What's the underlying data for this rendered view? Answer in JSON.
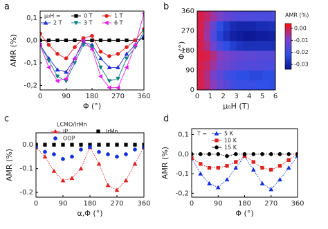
{
  "chart_data": [
    {
      "type": "line",
      "label": "a",
      "xlabel": "Φ (°)",
      "ylabel": "AMR (%)",
      "legend_title": "μ₀H =",
      "legend_columns": 3,
      "x": [
        0,
        30,
        60,
        90,
        120,
        150,
        180,
        210,
        240,
        270,
        300,
        330,
        360
      ],
      "xlim": [
        0,
        360
      ],
      "xticks": [
        0,
        90,
        180,
        270,
        360
      ],
      "ylim": [
        -0.22,
        0.13
      ],
      "yticks": [
        {
          "value": 0.1,
          "label": "0,1"
        },
        {
          "value": 0,
          "label": "0,0"
        },
        {
          "value": -0.1,
          "label": "-0,1"
        },
        {
          "value": -0.2,
          "label": "-0,2"
        }
      ],
      "series": [
        {
          "name": "0 T",
          "color": "#000000",
          "marker": "square",
          "linestyle": "solid",
          "values": [
            0,
            0,
            0,
            0,
            0,
            0,
            0,
            0,
            0,
            0,
            0,
            0,
            0.01
          ]
        },
        {
          "name": "1 T",
          "color": "#e02020",
          "marker": "circle",
          "linestyle": "solid",
          "values": [
            0.03,
            -0.02,
            -0.06,
            -0.08,
            -0.03,
            0.01,
            0.02,
            -0.05,
            -0.07,
            -0.06,
            -0.03,
            0.0,
            0.05
          ]
        },
        {
          "name": "2 T",
          "color": "#2030d0",
          "marker": "triangle",
          "linestyle": "solid",
          "values": [
            -0.02,
            -0.08,
            -0.13,
            -0.14,
            -0.08,
            -0.01,
            -0.02,
            -0.08,
            -0.12,
            -0.12,
            -0.06,
            -0.02,
            0.02
          ]
        },
        {
          "name": "3 T",
          "color": "#108080",
          "marker": "triangle-down",
          "linestyle": "solid",
          "values": [
            -0.02,
            -0.09,
            -0.16,
            -0.18,
            -0.1,
            -0.02,
            -0.03,
            -0.12,
            -0.18,
            -0.17,
            -0.08,
            -0.03,
            0.04
          ]
        },
        {
          "name": "6 T",
          "color": "#e020e0",
          "marker": "triangle-left",
          "linestyle": "solid",
          "values": [
            -0.02,
            -0.12,
            -0.18,
            -0.17,
            -0.08,
            0.0,
            -0.04,
            -0.16,
            -0.21,
            -0.21,
            -0.12,
            -0.02,
            0.12
          ]
        }
      ]
    },
    {
      "type": "heatmap",
      "label": "b",
      "xlabel": "μ₀H (T)",
      "ylabel": "Φ (°)",
      "colorbar_title": "AMR (%)",
      "xbins": [
        0,
        0.5,
        1,
        1.5,
        2,
        2.5,
        3,
        3.5,
        4,
        4.5,
        5,
        5.5,
        6
      ],
      "ybins": [
        0,
        45,
        90,
        135,
        180,
        225,
        270,
        315,
        360
      ],
      "xlim": [
        0,
        6
      ],
      "xticks": [
        0,
        1,
        2,
        3,
        4,
        5,
        6
      ],
      "ylim": [
        0,
        360
      ],
      "yticks": [
        0,
        90,
        180,
        270,
        360
      ],
      "clim": [
        -0.034,
        0.004
      ],
      "cticks": [
        -0.03,
        -0.02,
        -0.01,
        {
          "value": 0,
          "label": "0.00"
        }
      ],
      "colorscale": [
        "#0a1490",
        "#2f50e8",
        "#8040c8",
        "#ff1010"
      ],
      "z": [
        [
          0,
          -0.003,
          -0.008,
          -0.012,
          -0.015,
          -0.018,
          -0.02,
          -0.02,
          -0.02,
          -0.021,
          -0.021,
          -0.022
        ],
        [
          0,
          -0.004,
          -0.01,
          -0.014,
          -0.018,
          -0.02,
          -0.022,
          -0.022,
          -0.023,
          -0.023,
          -0.022,
          -0.022
        ],
        [
          0,
          -0.002,
          -0.006,
          -0.01,
          -0.012,
          -0.014,
          -0.015,
          -0.016,
          -0.016,
          -0.016,
          -0.017,
          -0.017
        ],
        [
          0.001,
          0,
          -0.004,
          -0.008,
          -0.01,
          -0.012,
          -0.013,
          -0.014,
          -0.014,
          -0.015,
          -0.015,
          -0.015
        ],
        [
          0,
          -0.004,
          -0.012,
          -0.018,
          -0.022,
          -0.025,
          -0.027,
          -0.028,
          -0.028,
          -0.028,
          -0.028,
          -0.028
        ],
        [
          0,
          -0.006,
          -0.016,
          -0.024,
          -0.028,
          -0.031,
          -0.032,
          -0.033,
          -0.033,
          -0.032,
          -0.032,
          -0.031
        ],
        [
          0,
          -0.005,
          -0.014,
          -0.022,
          -0.026,
          -0.029,
          -0.03,
          -0.03,
          -0.03,
          -0.029,
          -0.029,
          -0.028
        ],
        [
          0,
          -0.002,
          -0.006,
          -0.01,
          -0.013,
          -0.015,
          -0.016,
          -0.016,
          -0.017,
          -0.017,
          -0.017,
          -0.017
        ]
      ]
    },
    {
      "type": "scatter",
      "label": "c",
      "xlabel": "α,Φ (°)",
      "ylabel": "AMR (%)",
      "legend_title": "LCMO/IrMn",
      "legend_columns": 2,
      "x": [
        0,
        30,
        60,
        90,
        120,
        150,
        180,
        210,
        240,
        270,
        300,
        330,
        360
      ],
      "xlim": [
        0,
        360
      ],
      "xticks": [
        0,
        90,
        180,
        270,
        360
      ],
      "ylim": [
        -0.22,
        0.05
      ],
      "yticks": [
        {
          "value": 0,
          "label": "0.0"
        },
        -0.1,
        -0.2
      ],
      "series": [
        {
          "name": "IP",
          "color": "#e02020",
          "marker": "triangle",
          "linestyle": "dotted",
          "values": [
            -0.01,
            -0.05,
            -0.11,
            -0.15,
            -0.14,
            -0.1,
            -0.01,
            -0.08,
            -0.17,
            -0.19,
            -0.15,
            -0.08,
            -0.01
          ]
        },
        {
          "name": "IrMn",
          "color": "#000000",
          "marker": "square",
          "linestyle": "none",
          "values": [
            0,
            0,
            0,
            0,
            0,
            0,
            0,
            0,
            0,
            0,
            0,
            0,
            0
          ]
        },
        {
          "name": "OOP",
          "color": "#1030e0",
          "marker": "circle",
          "linestyle": "none",
          "values": [
            -0.01,
            -0.03,
            -0.04,
            -0.06,
            -0.05,
            -0.02,
            -0.01,
            -0.03,
            -0.04,
            -0.05,
            -0.04,
            -0.02,
            -0.01
          ]
        }
      ]
    },
    {
      "type": "line",
      "label": "d",
      "xlabel": "Φ (°)",
      "ylabel": "AMR (%)",
      "legend_title": "T =",
      "legend_columns": 1,
      "x": [
        0,
        30,
        60,
        90,
        120,
        150,
        180,
        210,
        240,
        270,
        300,
        330,
        360
      ],
      "xlim": [
        0,
        360
      ],
      "xticks": [
        0,
        90,
        180,
        270,
        360
      ],
      "ylim": [
        -0.22,
        0.13
      ],
      "yticks": [
        {
          "value": 0.1,
          "label": "0,1"
        },
        {
          "value": 0,
          "label": "0,0"
        },
        {
          "value": -0.1,
          "label": "-0,1"
        },
        {
          "value": -0.2,
          "label": "-0,2"
        }
      ],
      "series": [
        {
          "name": "5 K",
          "color": "#1030e0",
          "marker": "triangle",
          "linestyle": "dotted",
          "values": [
            -0.02,
            -0.1,
            -0.15,
            -0.17,
            -0.13,
            -0.07,
            -0.01,
            -0.08,
            -0.15,
            -0.18,
            -0.13,
            -0.07,
            -0.01
          ]
        },
        {
          "name": "10 K",
          "color": "#e02020",
          "marker": "square",
          "linestyle": "dotted",
          "values": [
            -0.02,
            -0.05,
            -0.07,
            -0.07,
            -0.06,
            -0.04,
            -0.01,
            -0.04,
            -0.07,
            -0.08,
            -0.06,
            -0.03,
            0
          ]
        },
        {
          "name": "15 K",
          "color": "#000000",
          "marker": "circle",
          "linestyle": "dotted",
          "values": [
            0,
            0,
            0,
            0,
            -0.01,
            0,
            0,
            0,
            0,
            0,
            0,
            0,
            0
          ]
        }
      ]
    }
  ]
}
